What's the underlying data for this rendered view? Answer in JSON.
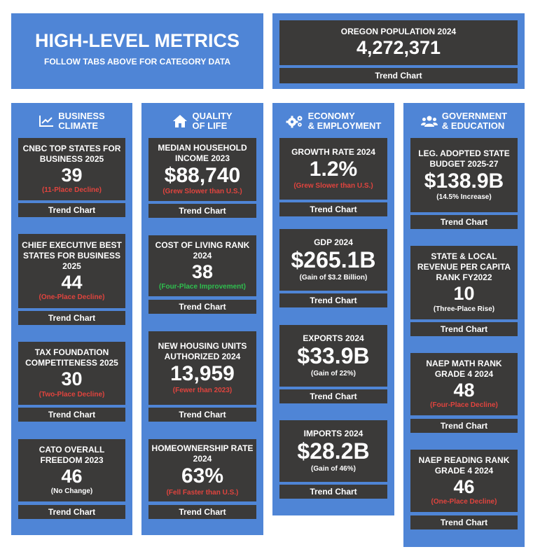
{
  "header": {
    "title": "HIGH-LEVEL METRICS",
    "subtitle": "FOLLOW TABS ABOVE FOR CATEGORY DATA"
  },
  "population": {
    "label": "OREGON POPULATION 2024",
    "value": "4,272,371",
    "trend": "Trend Chart"
  },
  "colors": {
    "blue": "#4f85d6",
    "dark": "#3b3a39",
    "red": "#e0443e",
    "green": "#2fbf4f"
  },
  "columns": [
    {
      "icon": "line-chart-icon",
      "title_line1": "BUSINESS",
      "title_line2": "CLIMATE",
      "cards": [
        {
          "title": "CNBC TOP STATES FOR BUSINESS 2025",
          "value": "39",
          "note": "(11-Place Decline)",
          "note_color": "red",
          "trend": "Trend Chart"
        },
        {
          "title": "CHIEF EXECUTIVE BEST STATES FOR BUSINESS 2025",
          "value": "44",
          "note": "(One-Place Decline)",
          "note_color": "red",
          "trend": "Trend Chart"
        },
        {
          "title": "TAX FOUNDATION COMPETITENESS 2025",
          "value": "30",
          "note": "(Two-Place Decline)",
          "note_color": "red",
          "trend": "Trend Chart"
        },
        {
          "title": "CATO OVERALL FREEDOM 2023",
          "value": "46",
          "note": "(No Change)",
          "note_color": "white",
          "trend": "Trend Chart"
        }
      ]
    },
    {
      "icon": "home-icon",
      "title_line1": "QUALITY",
      "title_line2": "OF LIFE",
      "cards": [
        {
          "title": "MEDIAN HOUSEHOLD INCOME 2023",
          "value": "$88,740",
          "note": "(Grew Slower than U.S.)",
          "note_color": "red",
          "trend": "Trend Chart"
        },
        {
          "title": "COST OF LIVING RANK 2024",
          "value": "38",
          "note": "(Four-Place Improvement)",
          "note_color": "green",
          "trend": "Trend Chart"
        },
        {
          "title": "NEW HOUSING UNITS AUTHORIZED 2024",
          "value": "13,959",
          "note": "(Fewer than 2023)",
          "note_color": "red",
          "trend": "Trend Chart"
        },
        {
          "title": "HOMEOWNERSHIP RATE 2024",
          "value": "63%",
          "note": "(Fell Faster than U.S.)",
          "note_color": "red",
          "trend": "Trend Chart"
        }
      ]
    },
    {
      "icon": "gears-icon",
      "title_line1": "ECONOMY",
      "title_line2": "& EMPLOYMENT",
      "cards": [
        {
          "title": "GROWTH RATE 2024",
          "value": "1.2%",
          "note": "(Grew Slower than U.S.)",
          "note_color": "red",
          "trend": "Trend Chart"
        },
        {
          "title": "GDP 2024",
          "value": "$265.1B",
          "note": "(Gain of $3.2 Billion)",
          "note_color": "white",
          "trend": "Trend Chart"
        },
        {
          "title": "EXPORTS 2024",
          "value": "$33.9B",
          "note": "(Gain of 22%)",
          "note_color": "white",
          "trend": "Trend Chart"
        },
        {
          "title": "IMPORTS 2024",
          "value": "$28.2B",
          "note": "(Gain of 46%)",
          "note_color": "white",
          "trend": "Trend Chart"
        }
      ]
    },
    {
      "icon": "users-icon",
      "title_line1": "GOVERNMENT",
      "title_line2": "& EDUCATION",
      "cards": [
        {
          "title": "LEG. ADOPTED STATE BUDGET 2025-27",
          "value": "$138.9B",
          "note": "(14.5% Increase)",
          "note_color": "white",
          "trend": "Trend Chart"
        },
        {
          "title": "STATE & LOCAL REVENUE PER CAPITA RANK FY2022",
          "value": "10",
          "note": "(Three-Place Rise)",
          "note_color": "white",
          "trend": "Trend Chart"
        },
        {
          "title": "NAEP MATH RANK GRADE 4 2024",
          "value": "48",
          "note": "(Four-Place Decline)",
          "note_color": "red",
          "trend": "Trend Chart"
        },
        {
          "title": "NAEP READING RANK GRADE 4 2024",
          "value": "46",
          "note": "(One-Place Decline)",
          "note_color": "red",
          "trend": "Trend Chart"
        }
      ]
    }
  ]
}
